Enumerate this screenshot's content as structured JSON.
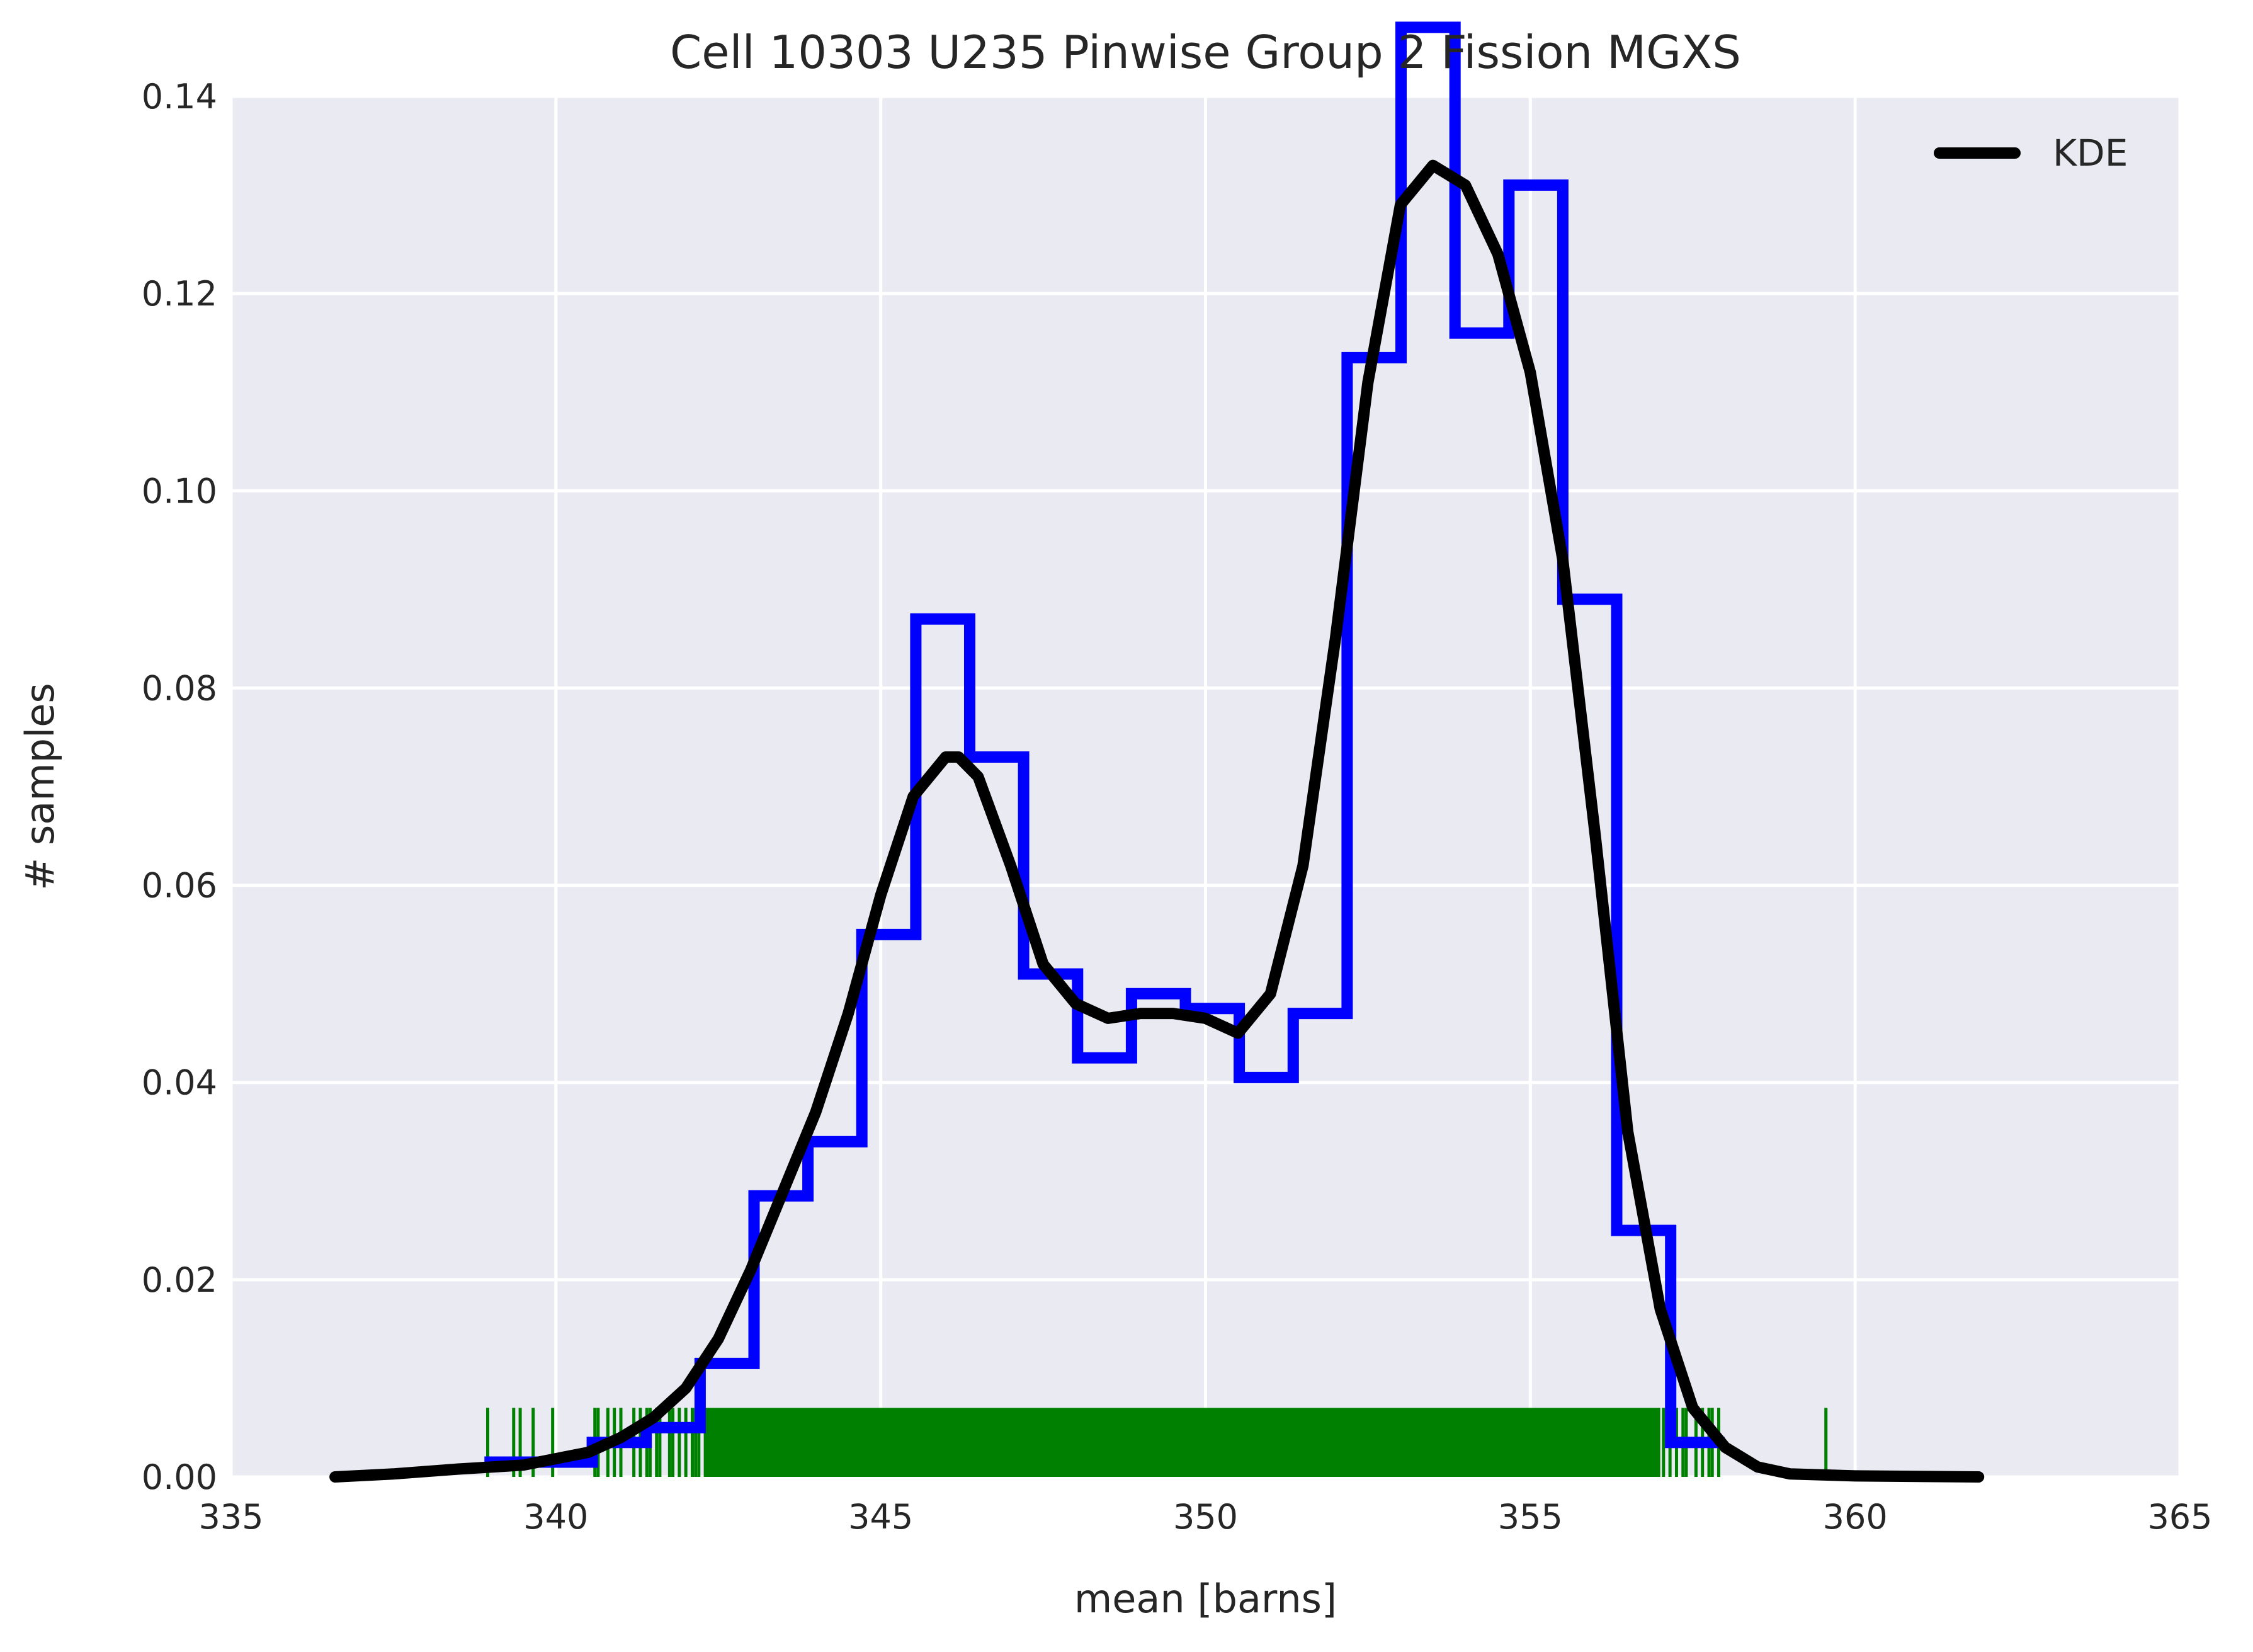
{
  "chart_data": {
    "type": "histogram",
    "title": "Cell 10303 U235 Pinwise Group 2 Fission MGXS",
    "xlabel": "mean [barns]",
    "ylabel": "# samples",
    "xlim": [
      335,
      365
    ],
    "ylim": [
      0,
      0.14
    ],
    "x_ticks": [
      335,
      340,
      345,
      350,
      355,
      360,
      365
    ],
    "x_tick_labels": [
      "335",
      "340",
      "345",
      "350",
      "355",
      "360",
      "365"
    ],
    "y_ticks": [
      0.0,
      0.02,
      0.04,
      0.06,
      0.08,
      0.1,
      0.12,
      0.14
    ],
    "y_tick_labels": [
      "0.00",
      "0.02",
      "0.04",
      "0.06",
      "0.08",
      "0.10",
      "0.12",
      "0.14"
    ],
    "grid": true,
    "legend": {
      "position": "top-right",
      "entries": [
        {
          "label": "KDE",
          "color": "#000000"
        }
      ]
    },
    "colors": {
      "background": "#eaeaf2",
      "grid": "#ffffff",
      "histogram": "#0000ff",
      "kde": "#000000",
      "rug": "#008000"
    },
    "histogram": {
      "bin_edges": [
        338.9,
        339.73,
        340.56,
        341.39,
        342.22,
        343.05,
        343.88,
        344.71,
        345.54,
        346.37,
        347.2,
        348.03,
        348.86,
        349.69,
        350.52,
        351.35,
        352.18,
        353.01,
        353.84,
        354.67,
        355.5,
        356.33,
        357.16,
        357.99
      ],
      "values": [
        0.0015,
        0.0015,
        0.0035,
        0.005,
        0.0115,
        0.0285,
        0.034,
        0.055,
        0.087,
        0.073,
        0.051,
        0.0425,
        0.049,
        0.0475,
        0.0405,
        0.047,
        0.1135,
        0.147,
        0.116,
        0.131,
        0.089,
        0.025,
        0.0035
      ]
    },
    "kde": {
      "x": [
        336.6,
        337.5,
        338.5,
        339.5,
        340.5,
        341.0,
        341.5,
        342.0,
        342.5,
        343.0,
        343.5,
        344.0,
        344.5,
        345.0,
        345.5,
        346.0,
        346.2,
        346.5,
        347.0,
        347.5,
        348.0,
        348.5,
        349.0,
        349.5,
        350.0,
        350.5,
        351.0,
        351.5,
        352.0,
        352.5,
        353.0,
        353.5,
        354.0,
        354.5,
        355.0,
        355.5,
        356.0,
        356.5,
        357.0,
        357.5,
        358.0,
        358.5,
        359.0,
        360.0,
        361.9
      ],
      "y": [
        0.0,
        0.0003,
        0.0008,
        0.0012,
        0.0025,
        0.004,
        0.006,
        0.009,
        0.014,
        0.021,
        0.029,
        0.037,
        0.047,
        0.059,
        0.069,
        0.073,
        0.073,
        0.071,
        0.062,
        0.052,
        0.048,
        0.0465,
        0.047,
        0.047,
        0.0465,
        0.045,
        0.049,
        0.062,
        0.085,
        0.111,
        0.129,
        0.133,
        0.131,
        0.124,
        0.112,
        0.093,
        0.065,
        0.035,
        0.017,
        0.007,
        0.003,
        0.001,
        0.0003,
        0.0001,
        0.0
      ]
    },
    "rug": {
      "x": [
        338.95,
        339.35,
        339.45,
        339.65,
        339.95,
        340.6,
        340.65,
        340.8,
        340.9,
        341.0,
        341.2,
        341.3,
        341.4,
        341.45,
        341.55,
        341.6,
        341.75,
        341.8,
        341.9,
        342.0,
        342.1,
        342.15,
        342.2,
        342.3,
        357.05,
        357.15,
        357.25,
        357.35,
        357.4,
        357.55,
        357.65,
        357.75,
        357.8,
        357.9,
        359.55
      ],
      "dense_range": [
        342.3,
        357.0
      ],
      "height": 0.007
    }
  }
}
